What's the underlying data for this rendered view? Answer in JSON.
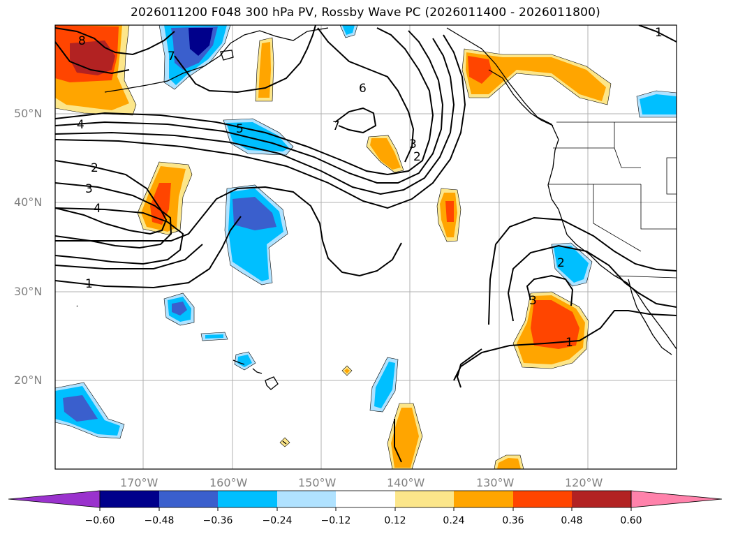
{
  "title": "2026011200 F048 300 hPa PV, Rossby Wave PC (2026011400 - 2026011800)",
  "lat_labels": [
    "50°N",
    "40°N",
    "30°N",
    "20°N"
  ],
  "lon_labels": [
    "170°W",
    "160°W",
    "150°W",
    "140°W",
    "130°W",
    "120°W"
  ],
  "contour_labels": [
    "8",
    "7",
    "4",
    "6",
    "5",
    "7",
    "3",
    "2",
    "2",
    "3",
    "4",
    "1",
    "2",
    "3",
    "1",
    "1"
  ],
  "colorbar": {
    "ticks": [
      "−0.60",
      "−0.48",
      "−0.36",
      "−0.24",
      "−0.12",
      "0.12",
      "0.24",
      "0.36",
      "0.48",
      "0.60"
    ],
    "colors": {
      "under": "#9a32cd",
      "b1": "#00008b",
      "b2": "#3a5fcd",
      "b3": "#00bfff",
      "b4": "#b0e2ff",
      "b5": "#ffffff",
      "b6": "#fce68a",
      "b7": "#ffa500",
      "b8": "#ff4500",
      "b9": "#b22222",
      "over": "#ff82ab"
    }
  }
}
